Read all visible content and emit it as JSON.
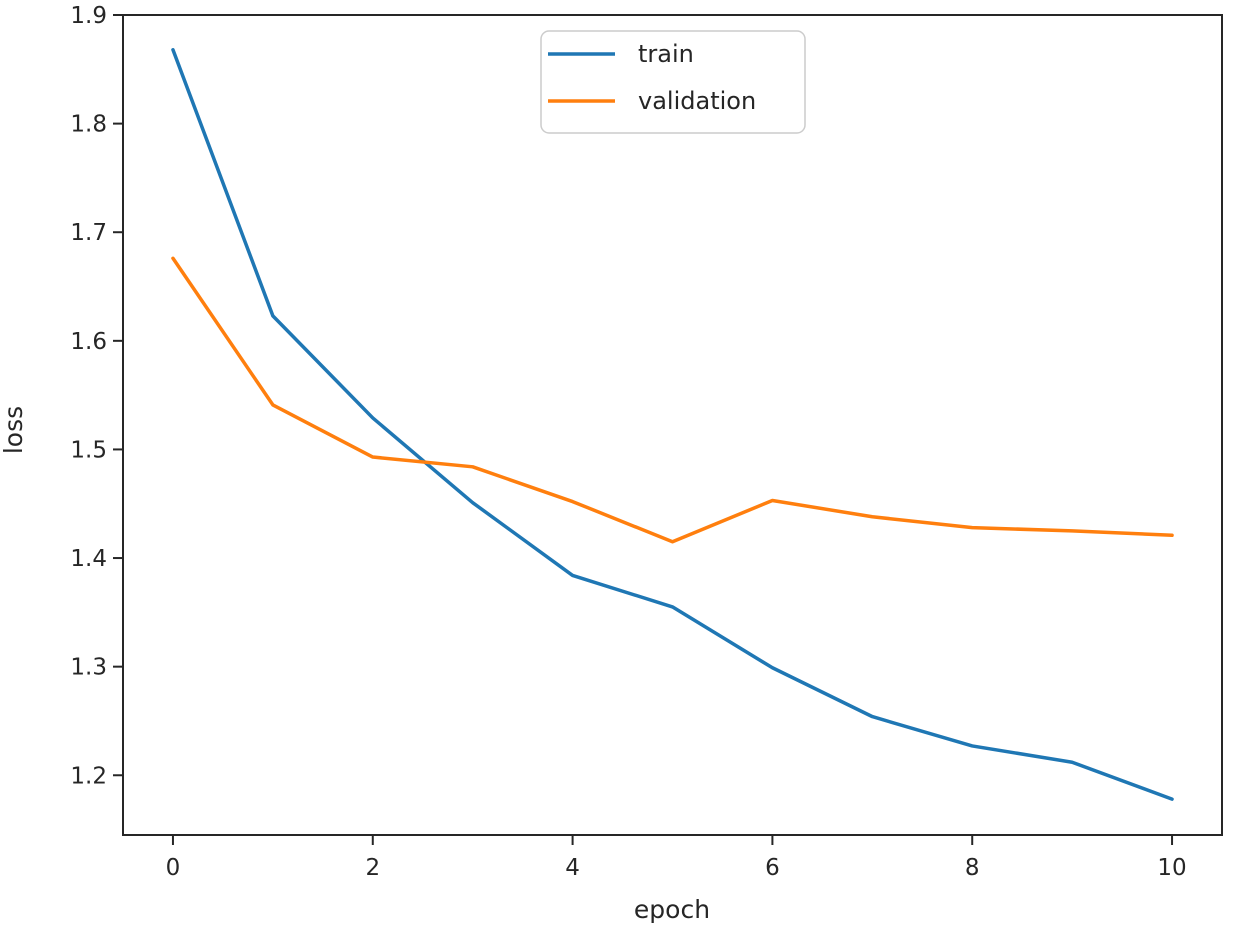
{
  "figure": {
    "background": "#ffffff",
    "text_color": "#262626",
    "spine_color": "#262626",
    "legend_border_color": "#cccccc"
  },
  "chart_data": {
    "type": "line",
    "title": "",
    "xlabel": "epoch",
    "ylabel": "loss",
    "x": [
      0,
      1,
      2,
      3,
      4,
      5,
      6,
      7,
      8,
      9,
      10
    ],
    "series": [
      {
        "name": "train",
        "color": "#1f77b4",
        "values": [
          1.868,
          1.623,
          1.529,
          1.451,
          1.384,
          1.355,
          1.299,
          1.254,
          1.227,
          1.212,
          1.178
        ]
      },
      {
        "name": "validation",
        "color": "#ff7f0e",
        "values": [
          1.676,
          1.541,
          1.493,
          1.484,
          1.452,
          1.415,
          1.453,
          1.438,
          1.428,
          1.425,
          1.421
        ]
      }
    ],
    "xlim": [
      -0.5,
      10.5
    ],
    "ylim": [
      1.145,
      1.9
    ],
    "xticks": [
      0,
      2,
      4,
      6,
      8,
      10
    ],
    "yticks": [
      1.2,
      1.3,
      1.4,
      1.5,
      1.6,
      1.7,
      1.8,
      1.9
    ],
    "grid": false,
    "legend": {
      "position": "upper center",
      "entries": [
        "train",
        "validation"
      ]
    }
  }
}
